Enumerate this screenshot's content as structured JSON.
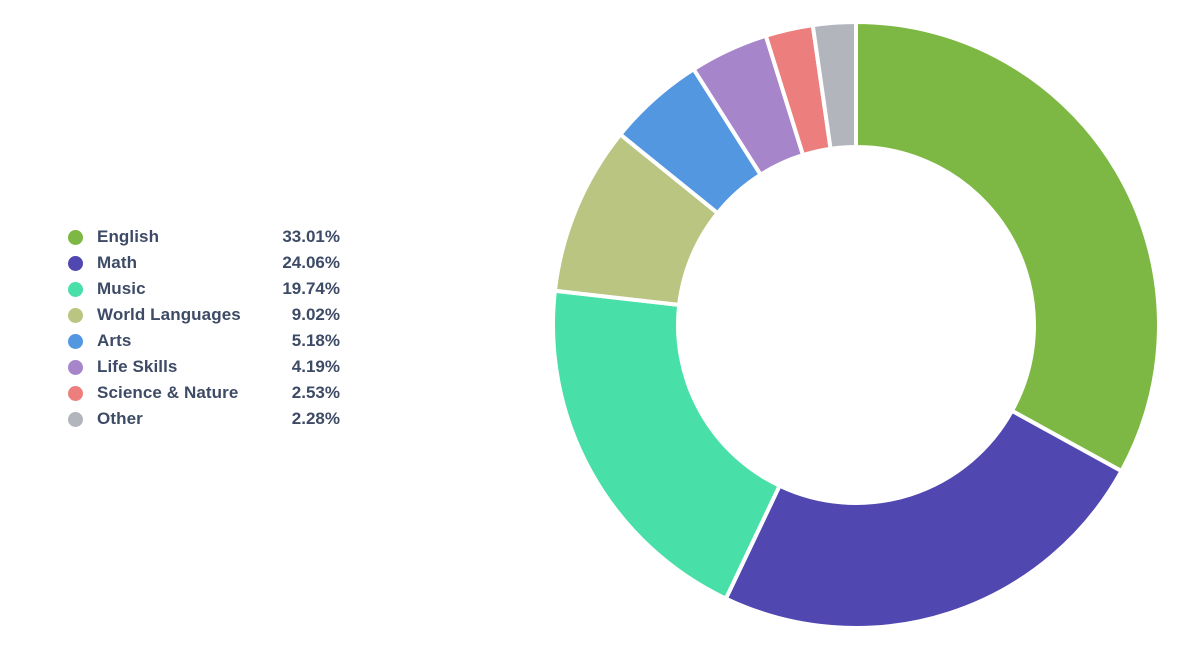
{
  "chart_data": {
    "type": "pie",
    "subtype": "donut",
    "title": "",
    "direction": "clockwise",
    "start_angle_deg": 0,
    "inner_radius_ratio": 0.587,
    "legend_position": "left",
    "slice_gap_color": "#ffffff",
    "text_color": "#3e4b66",
    "slices": [
      {
        "label": "English",
        "value": 33.01,
        "display": "33.01%",
        "color": "#7eb844"
      },
      {
        "label": "Math",
        "value": 24.06,
        "display": "24.06%",
        "color": "#5147b1"
      },
      {
        "label": "Music",
        "value": 19.74,
        "display": "19.74%",
        "color": "#49dfa9"
      },
      {
        "label": "World Languages",
        "value": 9.02,
        "display": "9.02%",
        "color": "#b9c580"
      },
      {
        "label": "Arts",
        "value": 5.18,
        "display": "5.18%",
        "color": "#5297e0"
      },
      {
        "label": "Life Skills",
        "value": 4.19,
        "display": "4.19%",
        "color": "#a685cb"
      },
      {
        "label": "Science & Nature",
        "value": 2.53,
        "display": "2.53%",
        "color": "#ec7f7e"
      },
      {
        "label": "Other",
        "value": 2.28,
        "display": "2.28%",
        "color": "#b3b5bd"
      }
    ]
  }
}
